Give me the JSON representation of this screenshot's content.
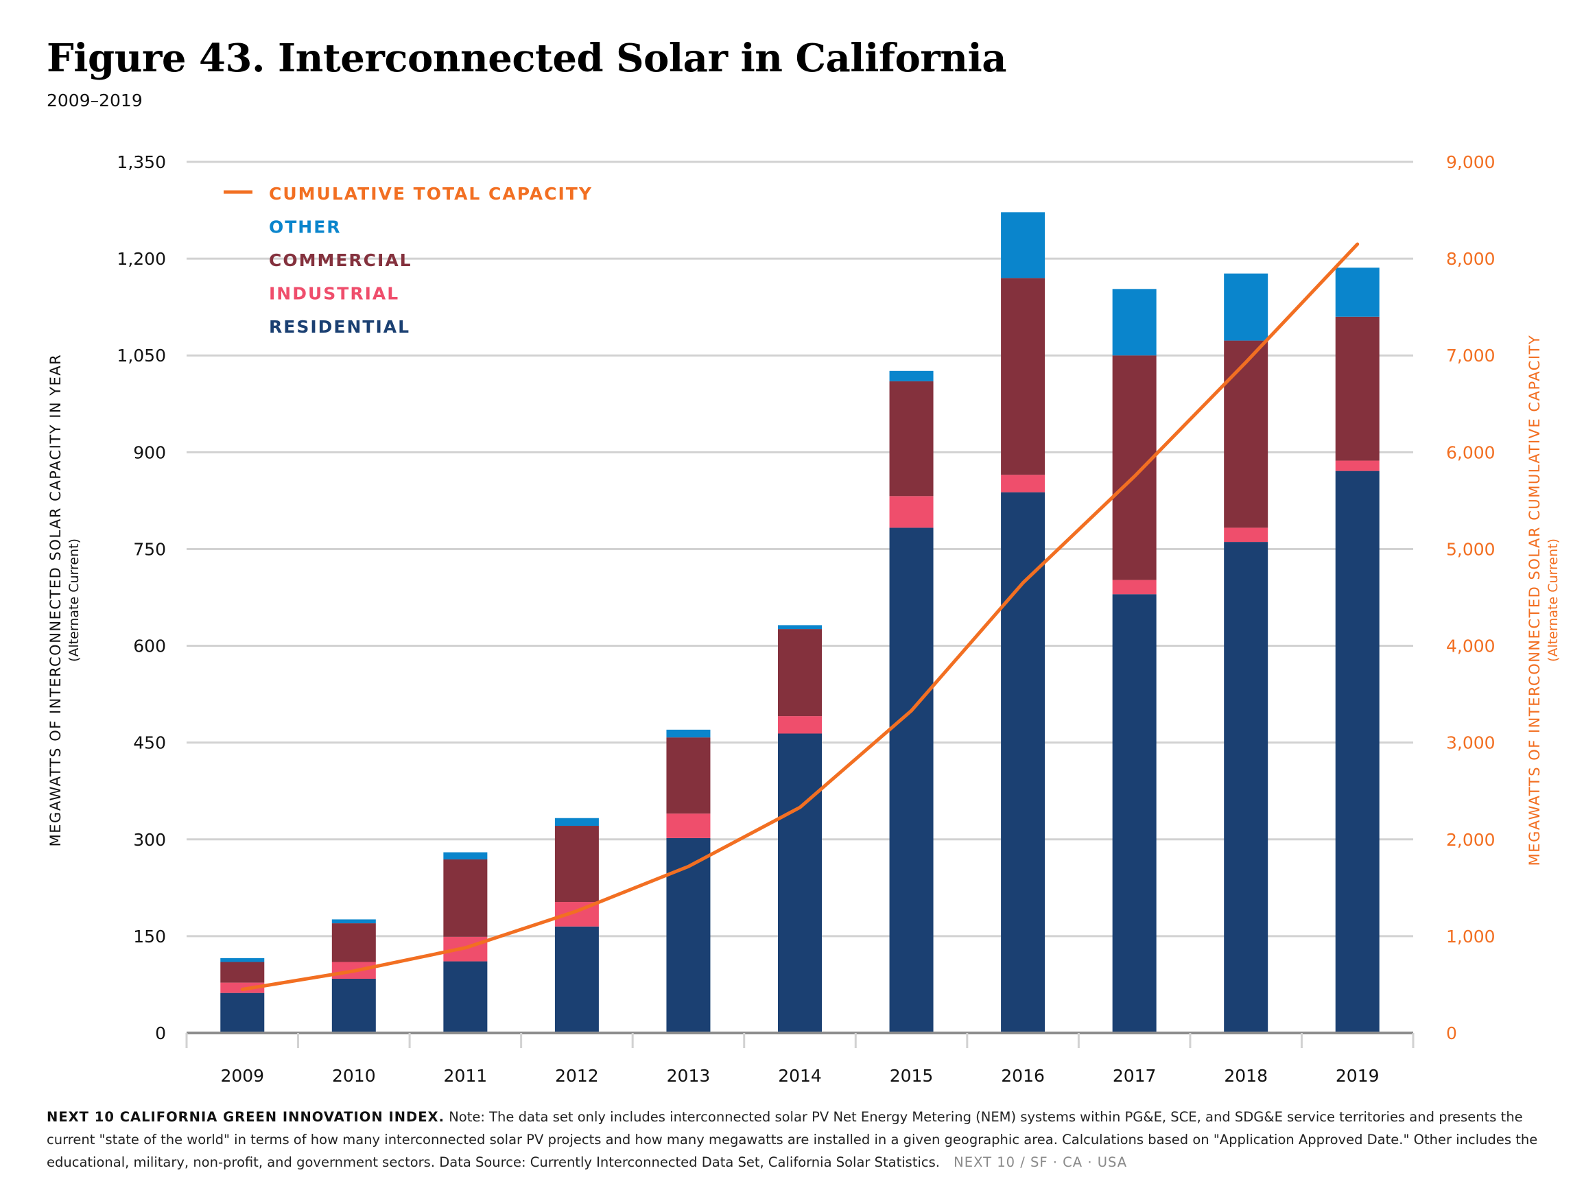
{
  "header": {
    "title": "Figure 43. Interconnected Solar in California",
    "subtitle": "2009–2019"
  },
  "colors": {
    "residential": "#1b4072",
    "industrial": "#ef4e6c",
    "commercial": "#84313d",
    "other": "#0a85cc",
    "cumulative": "#f26f22",
    "grid": "#d2d2d2",
    "axis": "#8c8c8c"
  },
  "chart_data": {
    "type": "bar",
    "stacked": true,
    "categories": [
      "2009",
      "2010",
      "2011",
      "2012",
      "2013",
      "2014",
      "2015",
      "2016",
      "2017",
      "2018",
      "2019"
    ],
    "series": [
      {
        "name": "RESIDENTIAL",
        "values": [
          62,
          84,
          111,
          165,
          302,
          464,
          783,
          838,
          680,
          761,
          871
        ]
      },
      {
        "name": "INDUSTRIAL",
        "values": [
          16,
          26,
          38,
          38,
          38,
          27,
          49,
          27,
          22,
          22,
          16
        ]
      },
      {
        "name": "COMMERCIAL",
        "values": [
          32,
          60,
          120,
          118,
          118,
          135,
          178,
          305,
          348,
          290,
          223
        ]
      },
      {
        "name": "OTHER",
        "values": [
          6,
          6,
          11,
          12,
          12,
          6,
          16,
          102,
          103,
          104,
          76
        ]
      }
    ],
    "line_series": {
      "name": "CUMULATIVE TOTAL CAPACITY",
      "axis": "right",
      "values": [
        450,
        640,
        880,
        1260,
        1720,
        2330,
        3330,
        4650,
        5750,
        6930,
        8150
      ]
    },
    "ylim_left": [
      0,
      1350
    ],
    "ylim_right": [
      0,
      9000
    ],
    "yticks_left": [
      "0",
      "150",
      "300",
      "450",
      "600",
      "750",
      "900",
      "1,050",
      "1,200",
      "1,350"
    ],
    "yticks_right": [
      "0",
      "1,000",
      "2,000",
      "3,000",
      "4,000",
      "5,000",
      "6,000",
      "7,000",
      "8,000",
      "9,000"
    ],
    "ylabel_left": "MEGAWATTS OF INTERCONNECTED SOLAR CAPACITY IN YEAR",
    "ylabel_left_sub": "(Alternate Current)",
    "ylabel_right": "MEGAWATTS OF INTERCONNECTED SOLAR CUMULATIVE CAPACITY",
    "ylabel_right_sub": "(Alternate Current)",
    "grid": true,
    "legend": {
      "placement": "top-left",
      "items": [
        "CUMULATIVE TOTAL CAPACITY",
        "OTHER",
        "COMMERCIAL",
        "INDUSTRIAL",
        "RESIDENTIAL"
      ]
    }
  },
  "footnote": {
    "lead": "NEXT 10 CALIFORNIA GREEN INNOVATION INDEX.",
    "text": "Note: The data set only includes interconnected solar PV Net Energy Metering (NEM) systems within PG&E, SCE, and SDG&E service territories and presents the current \"state of the world\" in terms of how many interconnected solar PV projects and how many megawatts are installed in a given geographic area. Calculations based on \"Application Approved Date.\" Other includes the educational, military, non-profit, and government sectors. Data Source: Currently Interconnected Data Set, California Solar Statistics.",
    "brand": "NEXT 10 / SF · CA · USA"
  }
}
